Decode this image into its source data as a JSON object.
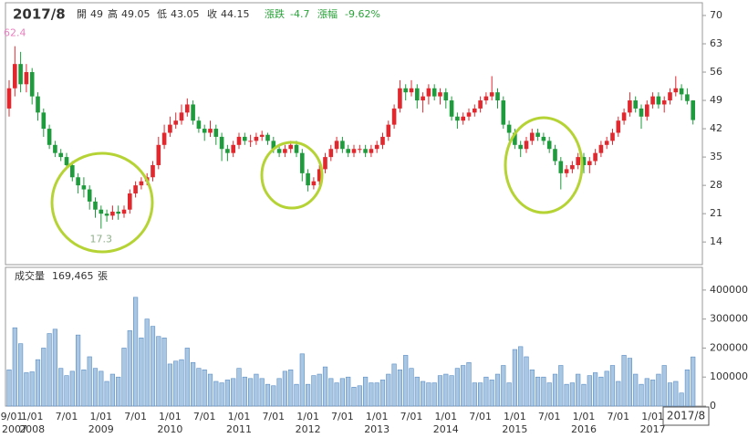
{
  "chart_data": [
    {
      "type": "candlestick",
      "date": "2017/8",
      "header": {
        "open_label": "開",
        "high_label": "高",
        "low_label": "低",
        "close_label": "收",
        "change_label": "漲跌",
        "change": -4.7,
        "change_pct_label": "漲幅",
        "change_pct": {
          "value": -9.62,
          "label": "-9.62%"
        }
      },
      "open": [
        47,
        52,
        58,
        53,
        56,
        50,
        46,
        42,
        38,
        36,
        35,
        33,
        30,
        28,
        27,
        24,
        22,
        21,
        20.5,
        21.5,
        21,
        22,
        26,
        28,
        29,
        30,
        33,
        38,
        41,
        43,
        44,
        46,
        48,
        44,
        42,
        41,
        42,
        40,
        37,
        36,
        38,
        40,
        39,
        39,
        40,
        40.5,
        39,
        37,
        36,
        37,
        38,
        36,
        31,
        28,
        29,
        32,
        35,
        37,
        39,
        37,
        36,
        37,
        37,
        36,
        37,
        38,
        40,
        43,
        47,
        52,
        51,
        52,
        49,
        50,
        52,
        50,
        51,
        49,
        45,
        44,
        45,
        46,
        47,
        49,
        50,
        51,
        49,
        43,
        41,
        38,
        37,
        39,
        41,
        40,
        39,
        37,
        34,
        31,
        32,
        33,
        35,
        33,
        34,
        36,
        38,
        39,
        41,
        44,
        46,
        49,
        47,
        45,
        48,
        50,
        48,
        49,
        51,
        52,
        50.5,
        49
      ],
      "high": [
        54,
        62.4,
        61,
        58,
        57,
        51,
        47,
        43,
        39,
        37,
        36,
        34,
        31,
        30,
        28,
        25,
        23,
        22,
        23,
        23,
        23,
        27,
        29,
        30,
        31,
        34,
        40,
        43,
        45,
        46,
        48,
        49.5,
        49,
        45,
        43,
        44,
        43,
        41,
        38,
        39,
        41,
        41,
        40.5,
        41,
        41.5,
        41,
        40,
        38,
        38,
        39,
        39,
        37,
        32,
        30,
        33,
        36,
        38,
        40,
        40,
        38,
        38,
        38,
        38,
        38,
        39,
        41,
        44,
        48,
        54,
        53,
        54,
        53,
        51,
        53,
        53,
        52,
        52,
        50,
        46,
        46,
        47,
        48,
        50,
        51,
        55,
        52,
        50,
        44,
        42,
        39,
        40,
        42,
        42,
        41,
        40,
        38,
        35,
        33,
        34,
        36,
        36,
        35,
        37,
        39,
        40,
        42,
        45,
        47,
        51,
        50,
        48,
        49,
        51,
        51,
        50,
        52,
        55,
        53,
        52,
        49.05
      ],
      "low": [
        45,
        50,
        51,
        51,
        48,
        44,
        40,
        37,
        35,
        34,
        32,
        29,
        26,
        25,
        22,
        20,
        17.3,
        19,
        19.5,
        19.5,
        20,
        21,
        25,
        27,
        28,
        29,
        32,
        37,
        40,
        42,
        43,
        45,
        43,
        41,
        39,
        40,
        38,
        34,
        34,
        35,
        37,
        38,
        37.5,
        38,
        39,
        38,
        36,
        35,
        35,
        36,
        35,
        29,
        26.5,
        27,
        28,
        31,
        34,
        36,
        36,
        35,
        35,
        36,
        35,
        35,
        36,
        37,
        39,
        42,
        46,
        49,
        50,
        47,
        46,
        48,
        49,
        48,
        47,
        44,
        42,
        43,
        44,
        45,
        46,
        48,
        49,
        47,
        42,
        39,
        37,
        35,
        36,
        38,
        39,
        38,
        36,
        33,
        27,
        30,
        31,
        32,
        31,
        31,
        33,
        35,
        37,
        38,
        40,
        43,
        45,
        46,
        42,
        44,
        47,
        47,
        46,
        48,
        50,
        49,
        48,
        43.05
      ],
      "close": [
        52,
        58,
        53,
        56,
        50,
        46,
        42,
        38,
        36,
        35,
        33,
        30,
        28,
        27,
        24,
        22,
        21,
        20.5,
        21.5,
        21,
        22,
        26,
        28,
        29,
        30,
        33,
        38,
        41,
        43,
        44,
        46,
        48,
        44,
        42,
        41,
        42,
        40,
        37,
        36,
        38,
        40,
        39,
        39,
        40,
        40.5,
        39,
        37,
        36,
        37,
        38,
        36,
        31,
        28,
        29,
        32,
        35,
        37,
        39,
        37,
        36,
        37,
        37,
        36,
        37,
        38,
        40,
        43,
        47,
        52,
        51,
        52,
        49,
        50,
        52,
        50,
        51,
        49,
        45,
        44,
        45,
        46,
        47,
        49,
        50,
        51,
        49,
        43,
        41,
        38,
        37,
        39,
        41,
        40,
        39,
        37,
        34,
        31,
        32,
        33,
        35,
        33,
        34,
        36,
        38,
        39,
        41,
        44,
        46,
        49,
        47,
        45,
        48,
        50,
        48,
        49,
        51,
        52,
        50.5,
        48.85,
        44.15
      ],
      "up_color": "#e0282e",
      "down_color": "#1e9b3c",
      "high_label_color": "#e87fbf",
      "low_label_color": "#8fb08a",
      "ylim": [
        8.4,
        72.7
      ],
      "yticks": [
        14,
        21,
        28,
        35,
        42,
        49,
        56,
        63,
        70
      ]
    },
    {
      "type": "bar",
      "title": "成交量",
      "current": "169,465",
      "unit": "張",
      "categories": [
        "9/01",
        null,
        null,
        null,
        "1/01",
        null,
        null,
        null,
        null,
        null,
        "7/01",
        null,
        null,
        null,
        null,
        null,
        "1/01",
        null,
        null,
        null,
        null,
        null,
        "7/01",
        null,
        null,
        null,
        null,
        null,
        "1/01",
        null,
        null,
        null,
        null,
        null,
        "7/01",
        null,
        null,
        null,
        null,
        null,
        "1/01",
        null,
        null,
        null,
        null,
        null,
        "7/01",
        null,
        null,
        null,
        null,
        null,
        "1/01",
        null,
        null,
        null,
        null,
        null,
        "7/01",
        null,
        null,
        null,
        null,
        null,
        "1/01",
        null,
        null,
        null,
        null,
        null,
        "7/01",
        null,
        null,
        null,
        null,
        null,
        "1/01",
        null,
        null,
        null,
        null,
        null,
        "7/01",
        null,
        null,
        null,
        null,
        null,
        "1/01",
        null,
        null,
        null,
        null,
        null,
        "7/01",
        null,
        null,
        null,
        null,
        null,
        "1/01",
        null,
        null,
        null,
        null,
        null,
        "7/01",
        null,
        null,
        null,
        null,
        null,
        "1/01",
        null,
        null,
        null,
        null,
        null,
        null,
        null
      ],
      "years": [
        "2007",
        null,
        null,
        null,
        "2008",
        null,
        null,
        null,
        null,
        null,
        null,
        null,
        null,
        null,
        null,
        null,
        "2009",
        null,
        null,
        null,
        null,
        null,
        null,
        null,
        null,
        null,
        null,
        null,
        "2010",
        null,
        null,
        null,
        null,
        null,
        null,
        null,
        null,
        null,
        null,
        null,
        "2011",
        null,
        null,
        null,
        null,
        null,
        null,
        null,
        null,
        null,
        null,
        null,
        "2012",
        null,
        null,
        null,
        null,
        null,
        null,
        null,
        null,
        null,
        null,
        null,
        "2013",
        null,
        null,
        null,
        null,
        null,
        null,
        null,
        null,
        null,
        null,
        null,
        "2014",
        null,
        null,
        null,
        null,
        null,
        null,
        null,
        null,
        null,
        null,
        null,
        "2015",
        null,
        null,
        null,
        null,
        null,
        null,
        null,
        null,
        null,
        null,
        null,
        "2016",
        null,
        null,
        null,
        null,
        null,
        null,
        null,
        null,
        null,
        null,
        null,
        "2017",
        null,
        null,
        null,
        null,
        null,
        null,
        null
      ],
      "values": [
        125000,
        270000,
        215000,
        115000,
        118000,
        160000,
        200000,
        250000,
        265000,
        130000,
        105000,
        120000,
        245000,
        125000,
        170000,
        130000,
        120000,
        85000,
        110000,
        100000,
        200000,
        260000,
        375000,
        235000,
        300000,
        275000,
        240000,
        235000,
        145000,
        155000,
        160000,
        200000,
        150000,
        130000,
        125000,
        110000,
        85000,
        80000,
        90000,
        95000,
        130000,
        100000,
        95000,
        110000,
        95000,
        75000,
        70000,
        95000,
        120000,
        125000,
        75000,
        180000,
        75000,
        105000,
        110000,
        135000,
        95000,
        80000,
        95000,
        100000,
        65000,
        70000,
        100000,
        80000,
        80000,
        90000,
        110000,
        145000,
        125000,
        175000,
        130000,
        100000,
        85000,
        80000,
        80000,
        105000,
        110000,
        105000,
        130000,
        140000,
        150000,
        80000,
        80000,
        100000,
        90000,
        110000,
        140000,
        80000,
        195000,
        205000,
        170000,
        125000,
        100000,
        100000,
        80000,
        110000,
        140000,
        75000,
        80000,
        110000,
        75000,
        105000,
        115000,
        100000,
        120000,
        140000,
        85000,
        175000,
        165000,
        110000,
        75000,
        95000,
        90000,
        110000,
        140000,
        80000,
        85000,
        45000,
        125000,
        169465
      ],
      "color": "#a9c6e3",
      "edge_color": "#5b8ec4",
      "ylim": [
        0,
        472000
      ],
      "yticks": [
        0,
        100000,
        200000,
        300000,
        400000
      ]
    }
  ]
}
